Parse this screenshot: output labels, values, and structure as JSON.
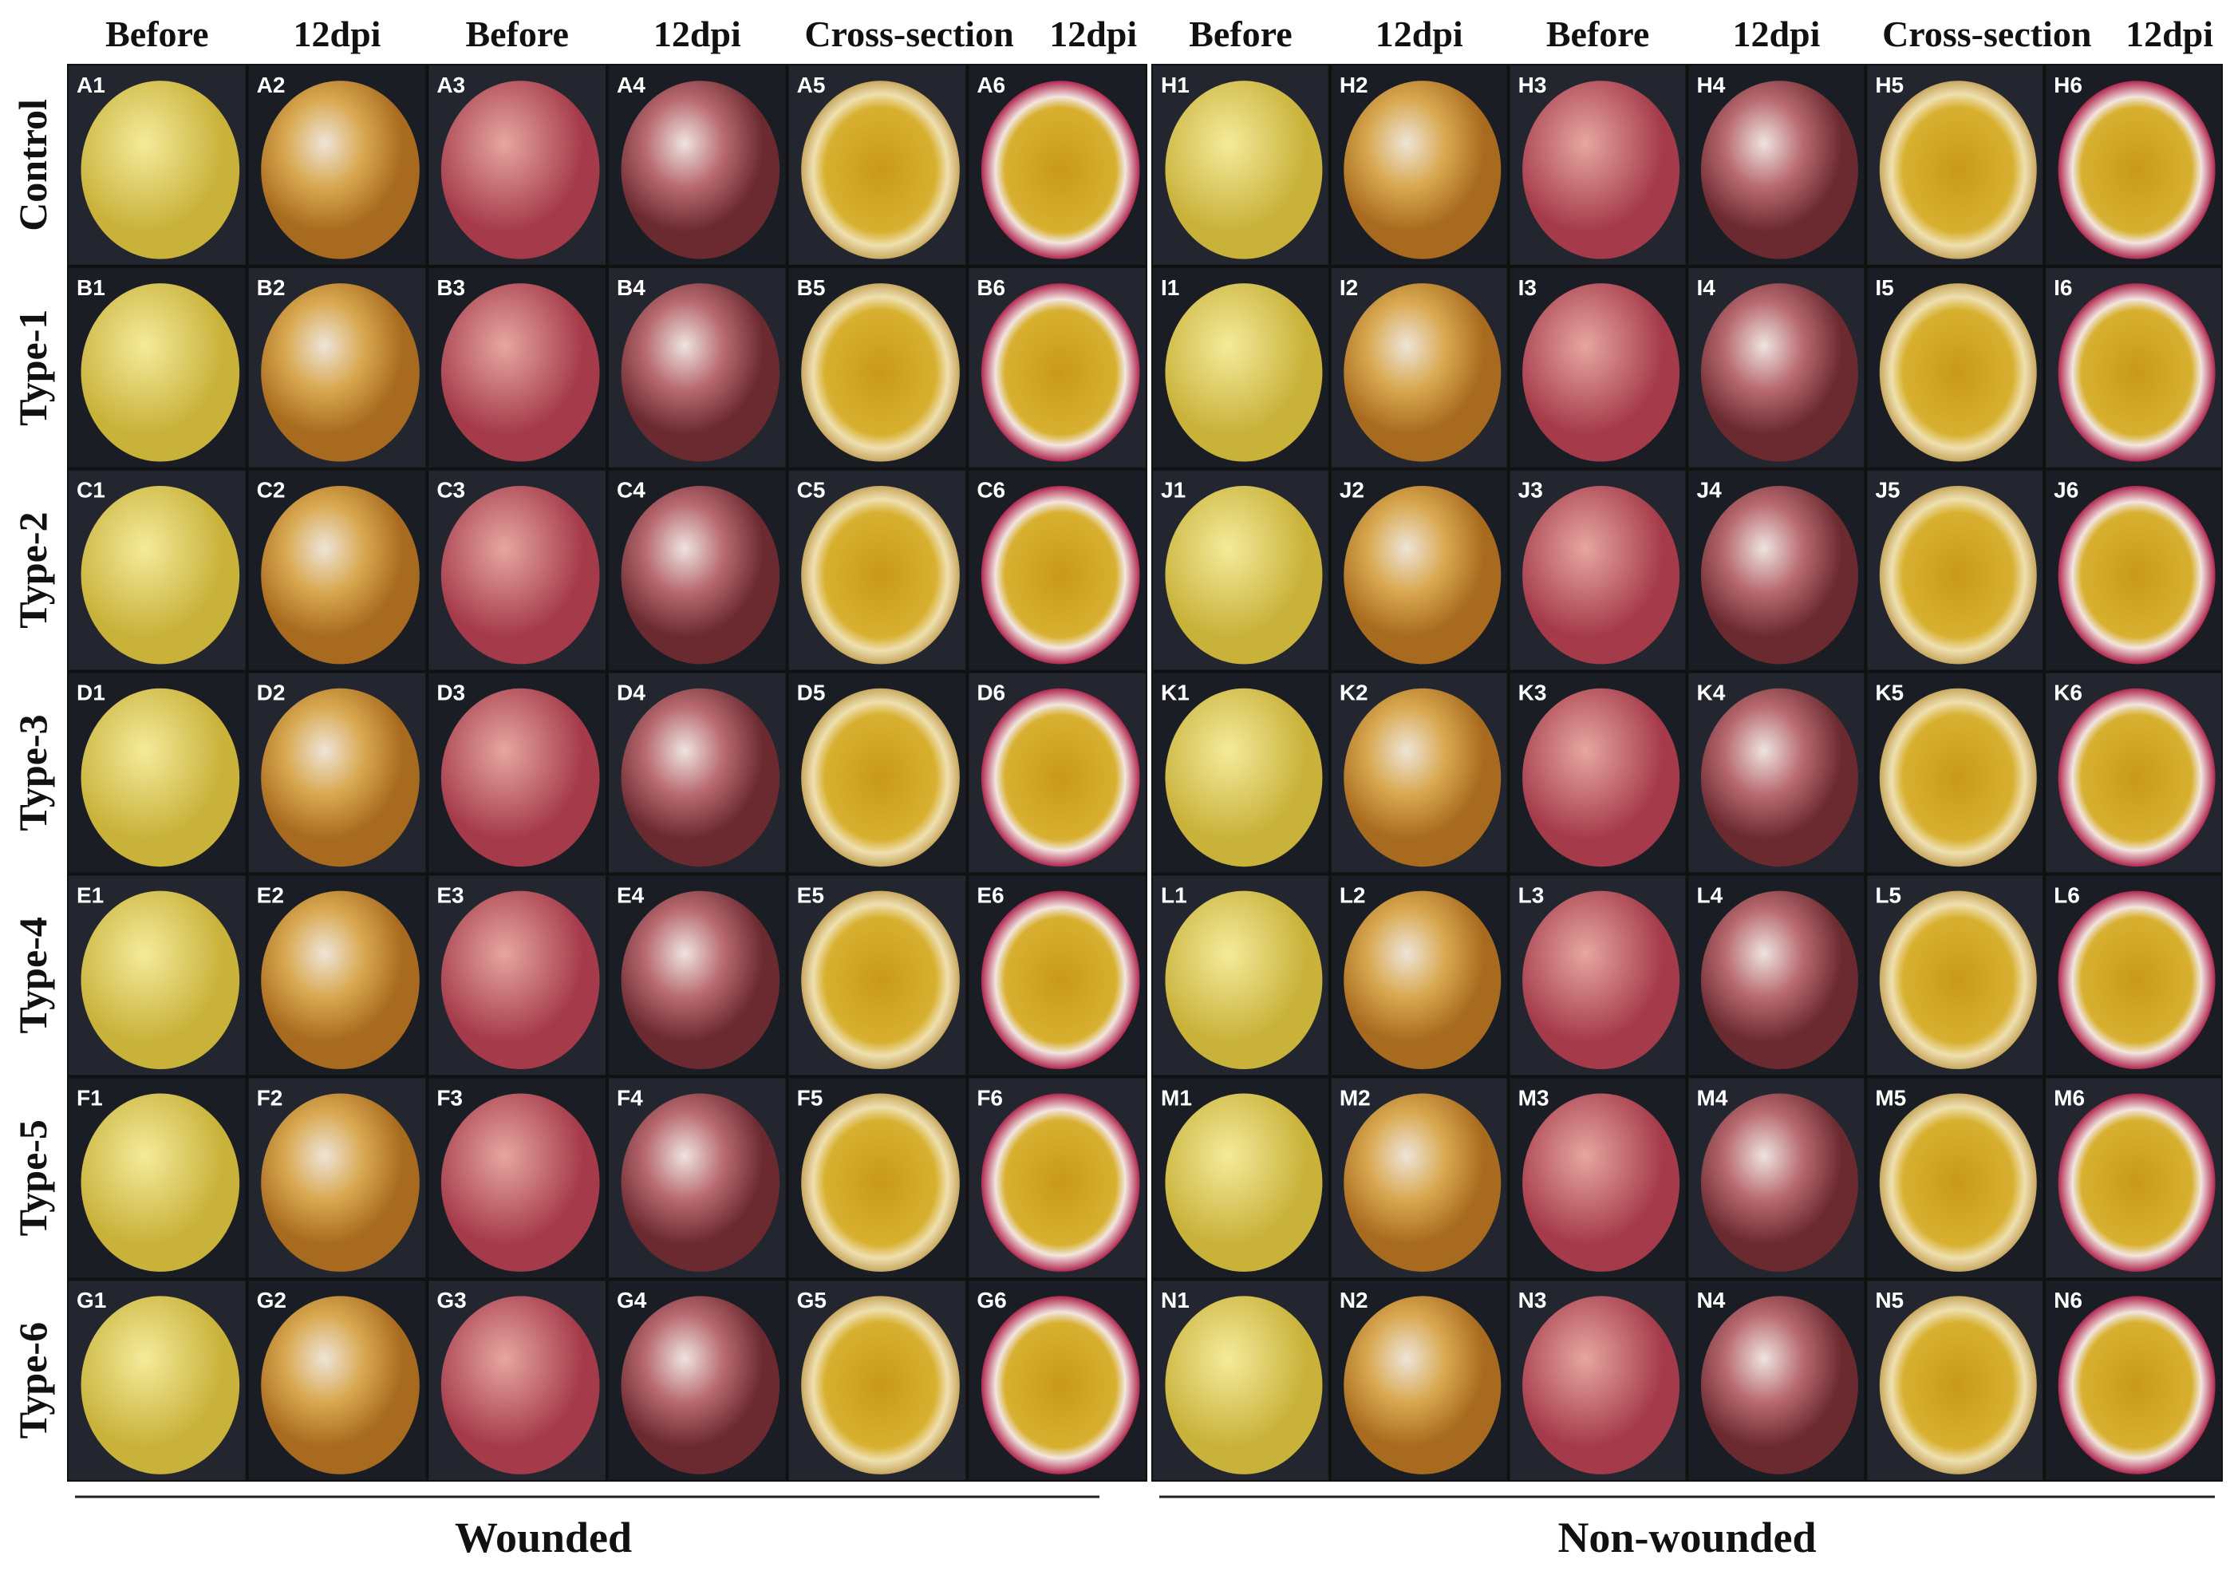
{
  "row_labels": [
    "Control",
    "Type-1",
    "Type-2",
    "Type-3",
    "Type-4",
    "Type-5",
    "Type-6"
  ],
  "panels": [
    {
      "caption": "Wounded",
      "headers": [
        "Before",
        "12dpi",
        "Before",
        "12dpi",
        "Cross-section",
        "12dpi"
      ],
      "cells": [
        [
          "A1",
          "A2",
          "A3",
          "A4",
          "A5",
          "A6"
        ],
        [
          "B1",
          "B2",
          "B3",
          "B4",
          "B5",
          "B6"
        ],
        [
          "C1",
          "C2",
          "C3",
          "C4",
          "C5",
          "C6"
        ],
        [
          "D1",
          "D2",
          "D3",
          "D4",
          "D5",
          "D6"
        ],
        [
          "E1",
          "E2",
          "E3",
          "E4",
          "E5",
          "E6"
        ],
        [
          "F1",
          "F2",
          "F3",
          "F4",
          "F5",
          "F6"
        ],
        [
          "G1",
          "G2",
          "G3",
          "G4",
          "G5",
          "G6"
        ]
      ]
    },
    {
      "caption": "Non-wounded",
      "headers": [
        "Before",
        "12dpi",
        "Before",
        "12dpi",
        "Cross-section",
        "12dpi"
      ],
      "cells": [
        [
          "H1",
          "H2",
          "H3",
          "H4",
          "H5",
          "H6"
        ],
        [
          "I1",
          "I2",
          "I3",
          "I4",
          "I5",
          "I6"
        ],
        [
          "J1",
          "J2",
          "J3",
          "J4",
          "J5",
          "J6"
        ],
        [
          "K1",
          "K2",
          "K3",
          "K4",
          "K5",
          "K6"
        ],
        [
          "L1",
          "L2",
          "L3",
          "L4",
          "L5",
          "L6"
        ],
        [
          "M1",
          "M2",
          "M3",
          "M4",
          "M5",
          "M6"
        ],
        [
          "N1",
          "N2",
          "N3",
          "N4",
          "N5",
          "N6"
        ]
      ]
    }
  ]
}
